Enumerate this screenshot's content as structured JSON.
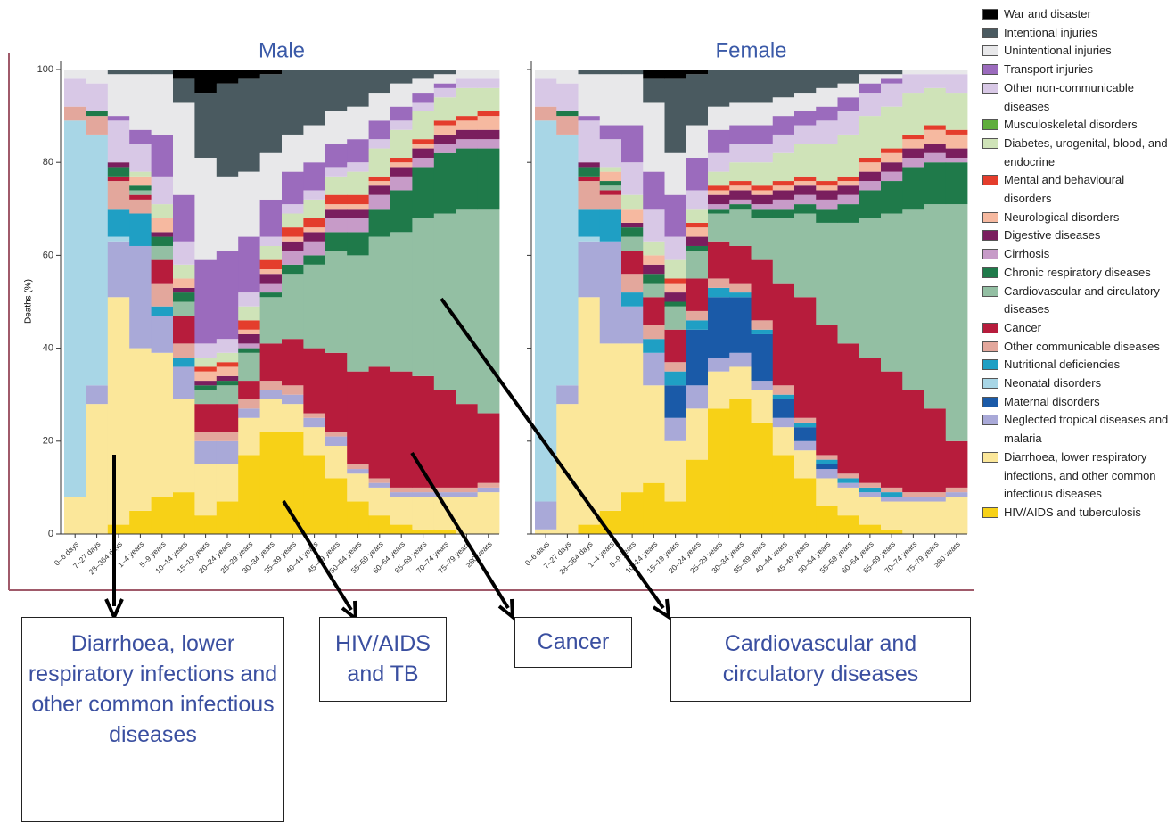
{
  "chart_data": {
    "type": "bar",
    "stacked": true,
    "ylabel": "Deaths (%)",
    "ylim": [
      0,
      100
    ],
    "yticks": [
      0,
      20,
      40,
      60,
      80,
      100
    ],
    "categories": [
      "0–6 days",
      "7–27 days",
      "28–364 days",
      "1–4 years",
      "5–9 years",
      "10–14 years",
      "15–19 years",
      "20–24 years",
      "25–29 years",
      "30–34 years",
      "35–39 years",
      "40–44 years",
      "45–49 years",
      "50–54 years",
      "55–59 years",
      "60–64 years",
      "65–69 years",
      "70–74 years",
      "75–79 years",
      "≥80 years"
    ],
    "legend": [
      {
        "name": "War and disaster",
        "color": "#000000"
      },
      {
        "name": "Intentional injuries",
        "color": "#4a5a60"
      },
      {
        "name": "Unintentional injuries",
        "color": "#e8e8ea"
      },
      {
        "name": "Transport injuries",
        "color": "#9b6bbd"
      },
      {
        "name": "Other non-communicable diseases",
        "color": "#d8c8e6"
      },
      {
        "name": "Musculoskeletal disorders",
        "color": "#5fae3c"
      },
      {
        "name": "Diabetes, urogenital, blood, and endocrine",
        "color": "#cfe3b8"
      },
      {
        "name": "Mental and behavioural disorders",
        "color": "#e43d2c"
      },
      {
        "name": "Neurological disorders",
        "color": "#f6b9a0"
      },
      {
        "name": "Digestive diseases",
        "color": "#7a1e5e"
      },
      {
        "name": "Cirrhosis",
        "color": "#c79bc8"
      },
      {
        "name": "Chronic respiratory diseases",
        "color": "#1f7a4a"
      },
      {
        "name": "Cardiovascular and circulatory diseases",
        "color": "#93bfa3"
      },
      {
        "name": "Cancer",
        "color": "#b71c3c"
      },
      {
        "name": "Other communicable diseases",
        "color": "#e3a79c"
      },
      {
        "name": "Nutritional deficiencies",
        "color": "#1f9fc4"
      },
      {
        "name": "Neonatal disorders",
        "color": "#a8d6e6"
      },
      {
        "name": "Maternal disorders",
        "color": "#1a5aa8"
      },
      {
        "name": "Neglected tropical diseases and malaria",
        "color": "#a9a9d8"
      },
      {
        "name": "Diarrhoea, lower respiratory infections, and other common infectious diseases",
        "color": "#fbe79a"
      },
      {
        "name": "HIV/AIDS and tuberculosis",
        "color": "#f7d117"
      }
    ],
    "panels": [
      {
        "title": "Male",
        "values": [
          [
            0,
            0,
            0,
            0,
            0,
            2,
            5,
            3,
            2,
            1,
            0,
            0,
            0,
            0,
            0,
            0,
            0,
            0,
            0,
            0
          ],
          [
            0,
            0,
            1,
            1,
            1,
            5,
            14,
            20,
            20,
            17,
            14,
            12,
            9,
            8,
            5,
            3,
            2,
            1,
            0,
            0
          ],
          [
            2,
            3,
            9,
            12,
            13,
            20,
            22,
            16,
            14,
            10,
            8,
            8,
            7,
            7,
            6,
            5,
            3,
            2,
            2,
            2
          ],
          [
            0,
            0,
            1,
            3,
            9,
            10,
            18,
            19,
            12,
            8,
            7,
            6,
            5,
            5,
            4,
            3,
            2,
            1,
            0,
            0
          ],
          [
            6,
            6,
            9,
            6,
            6,
            5,
            3,
            3,
            3,
            2,
            2,
            2,
            2,
            2,
            2,
            2,
            2,
            2,
            2,
            2
          ],
          [
            0,
            0,
            0,
            0,
            0,
            0,
            0,
            0,
            0,
            0,
            0,
            0,
            0,
            0,
            0,
            0,
            0,
            0,
            0,
            0
          ],
          [
            0,
            0,
            0,
            1,
            3,
            3,
            2,
            2,
            3,
            3,
            3,
            4,
            4,
            5,
            6,
            6,
            6,
            5,
            6,
            5
          ],
          [
            0,
            0,
            0,
            0,
            0,
            0,
            1,
            1,
            2,
            2,
            2,
            2,
            2,
            2,
            1,
            1,
            1,
            1,
            1,
            1
          ],
          [
            0,
            0,
            0,
            2,
            3,
            2,
            2,
            2,
            1,
            1,
            1,
            1,
            1,
            1,
            1,
            1,
            1,
            2,
            2,
            3
          ],
          [
            0,
            0,
            1,
            0,
            1,
            1,
            1,
            1,
            2,
            2,
            2,
            2,
            2,
            2,
            2,
            2,
            2,
            2,
            2,
            2
          ],
          [
            0,
            0,
            0,
            0,
            0,
            0,
            0,
            0,
            1,
            2,
            3,
            3,
            3,
            3,
            3,
            3,
            2,
            2,
            2,
            2
          ],
          [
            0,
            1,
            2,
            1,
            2,
            2,
            1,
            1,
            1,
            1,
            2,
            2,
            4,
            5,
            6,
            9,
            11,
            13,
            13,
            13
          ],
          [
            0,
            0,
            0,
            1,
            3,
            3,
            3,
            4,
            6,
            10,
            14,
            18,
            22,
            25,
            28,
            30,
            34,
            38,
            42,
            44
          ],
          [
            0,
            0,
            1,
            1,
            5,
            6,
            6,
            6,
            4,
            8,
            10,
            14,
            17,
            20,
            24,
            25,
            24,
            21,
            18,
            15
          ],
          [
            3,
            4,
            6,
            3,
            5,
            3,
            2,
            2,
            2,
            2,
            2,
            1,
            1,
            1,
            1,
            1,
            1,
            1,
            1,
            1
          ],
          [
            0,
            0,
            6,
            7,
            2,
            2,
            0,
            0,
            0,
            0,
            0,
            0,
            0,
            0,
            0,
            0,
            0,
            0,
            0,
            0
          ],
          [
            81,
            54,
            1,
            0,
            0,
            0,
            0,
            0,
            0,
            0,
            0,
            0,
            0,
            0,
            0,
            0,
            0,
            0,
            0,
            0
          ],
          [
            0,
            0,
            0,
            0,
            0,
            0,
            0,
            0,
            0,
            0,
            0,
            0,
            0,
            0,
            0,
            0,
            0,
            0,
            0,
            0
          ],
          [
            0,
            4,
            12,
            22,
            8,
            7,
            5,
            5,
            2,
            2,
            2,
            2,
            2,
            1,
            1,
            1,
            1,
            1,
            1,
            1
          ],
          [
            8,
            28,
            49,
            35,
            31,
            20,
            11,
            8,
            8,
            7,
            6,
            6,
            7,
            6,
            6,
            6,
            7,
            7,
            8,
            9
          ],
          [
            0,
            0,
            2,
            5,
            8,
            9,
            4,
            7,
            17,
            22,
            22,
            17,
            12,
            7,
            4,
            2,
            1,
            1,
            0,
            0
          ]
        ]
      },
      {
        "title": "Female",
        "values": [
          [
            0,
            0,
            0,
            0,
            0,
            2,
            2,
            1,
            0,
            0,
            0,
            0,
            0,
            0,
            0,
            0,
            0,
            0,
            0,
            0
          ],
          [
            0,
            0,
            1,
            1,
            1,
            5,
            16,
            11,
            8,
            7,
            7,
            6,
            5,
            4,
            3,
            1,
            1,
            0,
            0,
            0
          ],
          [
            2,
            3,
            9,
            11,
            11,
            15,
            9,
            7,
            5,
            5,
            5,
            4,
            4,
            4,
            3,
            2,
            1,
            1,
            1,
            1
          ],
          [
            0,
            0,
            1,
            3,
            8,
            8,
            9,
            7,
            5,
            4,
            4,
            4,
            3,
            3,
            3,
            2,
            1,
            0,
            0,
            0
          ],
          [
            6,
            6,
            9,
            6,
            7,
            7,
            5,
            4,
            4,
            4,
            4,
            4,
            4,
            5,
            5,
            5,
            5,
            4,
            3,
            4
          ],
          [
            0,
            0,
            0,
            0,
            0,
            0,
            0,
            0,
            0,
            0,
            0,
            0,
            0,
            0,
            0,
            0,
            0,
            0,
            0,
            0
          ],
          [
            0,
            0,
            0,
            1,
            3,
            3,
            4,
            3,
            3,
            4,
            5,
            6,
            7,
            8,
            9,
            9,
            9,
            9,
            8,
            8
          ],
          [
            0,
            0,
            0,
            0,
            0,
            0,
            1,
            1,
            1,
            1,
            1,
            1,
            1,
            1,
            1,
            1,
            1,
            1,
            1,
            1
          ],
          [
            0,
            0,
            0,
            2,
            3,
            2,
            2,
            2,
            1,
            1,
            1,
            1,
            1,
            1,
            1,
            2,
            2,
            2,
            3,
            3
          ],
          [
            0,
            0,
            1,
            0,
            1,
            2,
            2,
            2,
            2,
            2,
            2,
            2,
            2,
            2,
            2,
            2,
            2,
            2,
            2,
            2
          ],
          [
            0,
            0,
            0,
            0,
            0,
            0,
            0,
            0,
            1,
            1,
            1,
            2,
            2,
            2,
            2,
            2,
            2,
            2,
            2,
            1
          ],
          [
            0,
            1,
            2,
            1,
            2,
            2,
            1,
            1,
            1,
            1,
            2,
            2,
            2,
            3,
            4,
            6,
            7,
            9,
            9,
            9
          ],
          [
            0,
            0,
            0,
            1,
            3,
            3,
            5,
            6,
            6,
            8,
            9,
            14,
            18,
            22,
            26,
            30,
            34,
            39,
            44,
            51
          ],
          [
            0,
            0,
            1,
            1,
            5,
            6,
            7,
            7,
            8,
            8,
            13,
            22,
            26,
            28,
            28,
            27,
            25,
            22,
            18,
            10
          ],
          [
            3,
            4,
            6,
            3,
            4,
            3,
            2,
            2,
            2,
            2,
            2,
            2,
            1,
            1,
            1,
            1,
            1,
            1,
            1,
            1
          ],
          [
            0,
            0,
            6,
            7,
            3,
            3,
            3,
            2,
            2,
            1,
            1,
            1,
            1,
            1,
            1,
            1,
            1,
            0,
            0,
            0
          ],
          [
            82,
            54,
            1,
            0,
            0,
            0,
            0,
            0,
            0,
            0,
            0,
            0,
            0,
            0,
            0,
            0,
            0,
            0,
            0,
            0
          ],
          [
            0,
            0,
            0,
            0,
            0,
            0,
            7,
            12,
            13,
            12,
            10,
            4,
            3,
            1,
            0,
            0,
            0,
            0,
            0,
            0
          ],
          [
            6,
            4,
            12,
            22,
            8,
            7,
            5,
            5,
            3,
            3,
            2,
            2,
            2,
            2,
            1,
            1,
            1,
            1,
            1,
            1
          ],
          [
            1,
            28,
            49,
            36,
            32,
            21,
            13,
            11,
            8,
            7,
            7,
            6,
            6,
            6,
            6,
            6,
            6,
            7,
            7,
            8
          ],
          [
            0,
            0,
            2,
            5,
            9,
            11,
            7,
            16,
            27,
            29,
            24,
            17,
            12,
            6,
            4,
            2,
            1,
            0,
            0,
            0
          ]
        ]
      }
    ],
    "annotations": [
      "Diarrhoea, lower respiratory infections and other common infectious diseases",
      "HIV/AIDS and TB",
      "Cancer",
      "Cardiovascular and circulatory diseases"
    ]
  }
}
